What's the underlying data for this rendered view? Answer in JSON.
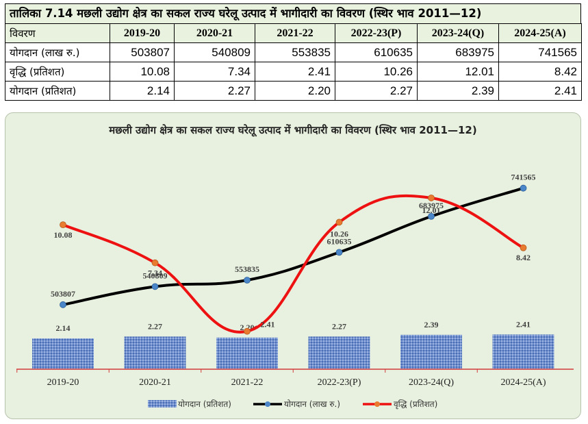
{
  "table": {
    "title": "तालिका 7.14 मछली उद्योग क्षेत्र का सकल राज्य घरेलू उत्पाद में भागीदारी का विवरण (स्थिर भाव 2011—12)",
    "header_label": "विवरण",
    "columns": [
      "2019-20",
      "2020-21",
      "2021-22",
      "2022-23(P)",
      "2023-24(Q)",
      "2024-25(A)"
    ],
    "rows": [
      {
        "label": "योगदान (लाख रु.)",
        "values": [
          "503807",
          "540809",
          "553835",
          "610635",
          "683975",
          "741565"
        ]
      },
      {
        "label": "वृद्धि   (प्रतिशत)",
        "values": [
          "10.08",
          "7.34",
          "2.41",
          "10.26",
          "12.01",
          "8.42"
        ]
      },
      {
        "label": "योगदान  (प्रतिशत)",
        "values": [
          "2.14",
          "2.27",
          "2.20",
          "2.27",
          "2.39",
          "2.41"
        ]
      }
    ]
  },
  "chart_data": {
    "type": "bar",
    "title": "मछली उद्योग क्षेत्र का सकल राज्य घरेलू उत्पाद में भागीदारी का विवरण (स्थिर भाव 2011—12)",
    "categories": [
      "2019-20",
      "2020-21",
      "2021-22",
      "2022-23(P)",
      "2023-24(Q)",
      "2024-25(A)"
    ],
    "series": [
      {
        "name": "योगदान (प्रतिशत)",
        "type": "bar",
        "values": [
          2.14,
          2.27,
          2.2,
          2.27,
          2.39,
          2.41
        ],
        "labels": [
          "2.14",
          "2.27",
          "2.20",
          "2.27",
          "2.39",
          "2.41"
        ],
        "color": "#5a7fc4"
      },
      {
        "name": "योगदान (लाख रु.)",
        "type": "line",
        "values": [
          503807,
          540809,
          553835,
          610635,
          683975,
          741565
        ],
        "labels": [
          "503807",
          "540809",
          "553835",
          "610635",
          "683975",
          "741565"
        ],
        "color": "#000000",
        "marker_color": "#4a86c8"
      },
      {
        "name": "वृद्धि   (प्रतिशत)",
        "type": "line",
        "smooth": true,
        "values": [
          10.08,
          7.34,
          2.41,
          10.26,
          12.01,
          8.42
        ],
        "labels": [
          "10.08",
          "7.34",
          "2.41",
          "10.26",
          "12.01",
          "8.42"
        ],
        "color": "#ee1111",
        "marker_color": "#e87b2f"
      }
    ],
    "legend_position": "bottom",
    "grid": false
  }
}
